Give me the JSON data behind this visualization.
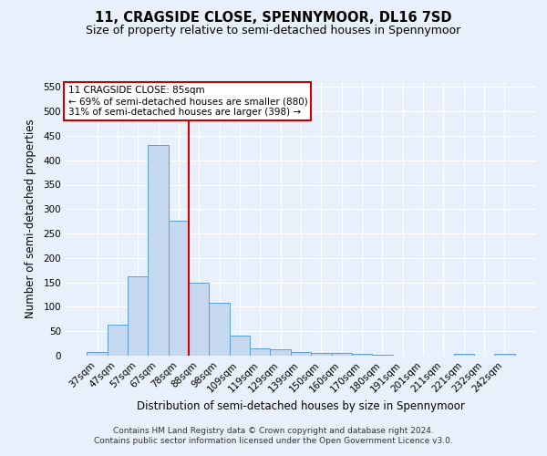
{
  "title": "11, CRAGSIDE CLOSE, SPENNYMOOR, DL16 7SD",
  "subtitle": "Size of property relative to semi-detached houses in Spennymoor",
  "xlabel": "Distribution of semi-detached houses by size in Spennymoor",
  "ylabel": "Number of semi-detached properties",
  "categories": [
    "37sqm",
    "47sqm",
    "57sqm",
    "67sqm",
    "78sqm",
    "88sqm",
    "98sqm",
    "109sqm",
    "119sqm",
    "129sqm",
    "139sqm",
    "150sqm",
    "160sqm",
    "170sqm",
    "180sqm",
    "191sqm",
    "201sqm",
    "211sqm",
    "221sqm",
    "232sqm",
    "242sqm"
  ],
  "values": [
    7,
    63,
    163,
    432,
    277,
    149,
    109,
    42,
    15,
    13,
    8,
    5,
    5,
    3,
    1,
    0,
    0,
    0,
    4,
    0,
    4
  ],
  "bar_color": "#c5d8f0",
  "bar_edge_color": "#5a9fd4",
  "vline_color": "#cc0000",
  "vline_pos": 4.5,
  "annotation_text": "11 CRAGSIDE CLOSE: 85sqm\n← 69% of semi-detached houses are smaller (880)\n31% of semi-detached houses are larger (398) →",
  "annotation_box_color": "#ffffff",
  "annotation_box_edge": "#cc0000",
  "ylim": [
    0,
    560
  ],
  "yticks": [
    0,
    50,
    100,
    150,
    200,
    250,
    300,
    350,
    400,
    450,
    500,
    550
  ],
  "footer": "Contains HM Land Registry data © Crown copyright and database right 2024.\nContains public sector information licensed under the Open Government Licence v3.0.",
  "background_color": "#e8f1fb",
  "grid_color": "#ffffff",
  "title_fontsize": 10.5,
  "subtitle_fontsize": 9,
  "axis_label_fontsize": 8.5,
  "tick_fontsize": 7.5,
  "annotation_fontsize": 7.5,
  "footer_fontsize": 6.5
}
